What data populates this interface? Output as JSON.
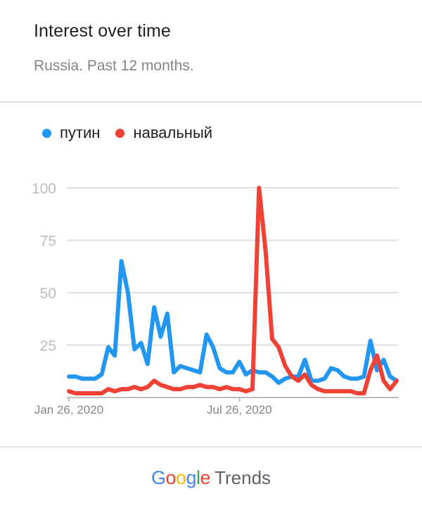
{
  "header": {
    "title": "Interest over time",
    "subtitle": "Russia. Past 12 months."
  },
  "legend": [
    {
      "label": "путин",
      "color": "#2196f3"
    },
    {
      "label": "навальный",
      "color": "#ef4135"
    }
  ],
  "footer": {
    "logo_google": "Google",
    "logo_trends": "Trends",
    "google_letter_colors": [
      "#4285f4",
      "#ea4335",
      "#fbbc05",
      "#4285f4",
      "#34a853",
      "#ea4335"
    ]
  },
  "chart_data": {
    "type": "line",
    "title": "Interest over time",
    "subtitle": "Russia. Past 12 months.",
    "ylim": [
      0,
      100
    ],
    "yticks": [
      25,
      50,
      75,
      100
    ],
    "xtick_labels": [
      {
        "label": "Jan 26, 2020",
        "index": 0
      },
      {
        "label": "Jul 26, 2020",
        "index": 26
      }
    ],
    "grid": true,
    "legend_position": "top-left",
    "series": [
      {
        "name": "путин",
        "color": "#2196f3",
        "values": [
          10,
          10,
          9,
          9,
          9,
          11,
          24,
          20,
          65,
          50,
          23,
          26,
          16,
          43,
          29,
          40,
          12,
          15,
          14,
          13,
          12,
          30,
          24,
          14,
          12,
          12,
          17,
          11,
          13,
          12,
          12,
          10,
          7,
          9,
          10,
          10,
          18,
          8,
          8,
          9,
          14,
          13,
          10,
          9,
          9,
          10,
          27,
          13,
          18,
          10,
          8
        ]
      },
      {
        "name": "навальный",
        "color": "#ef4135",
        "values": [
          3,
          2,
          2,
          2,
          2,
          2,
          4,
          3,
          4,
          4,
          5,
          4,
          5,
          8,
          6,
          5,
          4,
          4,
          5,
          5,
          6,
          5,
          5,
          4,
          5,
          4,
          4,
          3,
          4,
          100,
          70,
          28,
          24,
          15,
          10,
          8,
          11,
          6,
          4,
          3,
          3,
          3,
          3,
          3,
          2,
          2,
          13,
          20,
          8,
          4,
          8
        ]
      }
    ]
  }
}
